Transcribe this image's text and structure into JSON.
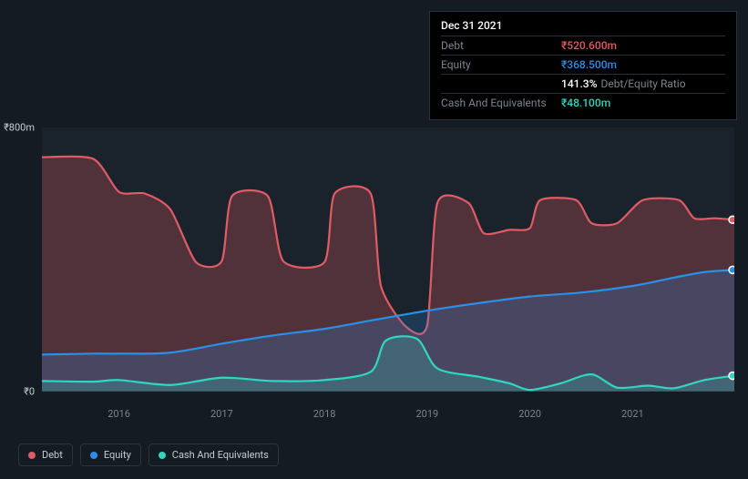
{
  "chart": {
    "type": "area",
    "background_color": "#141b22",
    "plot_background": "#1a232c",
    "grid_color": "#2a3540",
    "text_color": "#c7cdd3",
    "muted_text_color": "#7a848f",
    "ylim": [
      0,
      800
    ],
    "y_ticks": [
      {
        "v": 800,
        "label": "₹800m"
      },
      {
        "v": 0,
        "label": "₹0"
      }
    ],
    "x_years": [
      2016,
      2017,
      2018,
      2019,
      2020,
      2021
    ],
    "x_range": [
      2015.25,
      2021.99
    ],
    "series": {
      "debt": {
        "label": "Debt",
        "color": "#e15b64",
        "fill": "rgba(225,91,100,0.28)",
        "fill_to": 0,
        "data": [
          [
            2015.25,
            710
          ],
          [
            2015.75,
            705
          ],
          [
            2016.0,
            605
          ],
          [
            2016.25,
            600
          ],
          [
            2016.5,
            552
          ],
          [
            2016.75,
            392
          ],
          [
            2017.0,
            395
          ],
          [
            2017.1,
            592
          ],
          [
            2017.45,
            592
          ],
          [
            2017.6,
            395
          ],
          [
            2018.0,
            392
          ],
          [
            2018.1,
            600
          ],
          [
            2018.45,
            600
          ],
          [
            2018.55,
            320
          ],
          [
            2018.8,
            195
          ],
          [
            2019.0,
            200
          ],
          [
            2019.1,
            572
          ],
          [
            2019.4,
            572
          ],
          [
            2019.55,
            480
          ],
          [
            2019.8,
            490
          ],
          [
            2020.0,
            495
          ],
          [
            2020.1,
            580
          ],
          [
            2020.45,
            580
          ],
          [
            2020.6,
            510
          ],
          [
            2020.85,
            510
          ],
          [
            2021.1,
            580
          ],
          [
            2021.45,
            580
          ],
          [
            2021.6,
            525
          ],
          [
            2021.8,
            525
          ],
          [
            2021.99,
            520.6
          ]
        ]
      },
      "equity": {
        "label": "Equity",
        "color": "#2b8fe6",
        "fill": "rgba(43,143,230,0.22)",
        "fill_to": 0,
        "data": [
          [
            2015.25,
            112
          ],
          [
            2015.75,
            115
          ],
          [
            2016.0,
            115
          ],
          [
            2016.5,
            118
          ],
          [
            2017.0,
            145
          ],
          [
            2017.5,
            170
          ],
          [
            2018.0,
            190
          ],
          [
            2018.5,
            218
          ],
          [
            2019.0,
            245
          ],
          [
            2019.5,
            268
          ],
          [
            2020.0,
            288
          ],
          [
            2020.5,
            300
          ],
          [
            2021.0,
            320
          ],
          [
            2021.4,
            345
          ],
          [
            2021.7,
            362
          ],
          [
            2021.99,
            368.5
          ]
        ]
      },
      "cash": {
        "label": "Cash And Equivalents",
        "color": "#30d6c0",
        "fill": "rgba(48,214,192,0.22)",
        "fill_to": 0,
        "data": [
          [
            2015.25,
            32
          ],
          [
            2015.75,
            30
          ],
          [
            2016.0,
            35
          ],
          [
            2016.5,
            20
          ],
          [
            2017.0,
            42
          ],
          [
            2017.5,
            32
          ],
          [
            2018.0,
            35
          ],
          [
            2018.45,
            60
          ],
          [
            2018.6,
            155
          ],
          [
            2018.9,
            160
          ],
          [
            2019.1,
            70
          ],
          [
            2019.5,
            45
          ],
          [
            2019.8,
            25
          ],
          [
            2020.0,
            5
          ],
          [
            2020.3,
            25
          ],
          [
            2020.6,
            52
          ],
          [
            2020.85,
            12
          ],
          [
            2021.15,
            18
          ],
          [
            2021.4,
            10
          ],
          [
            2021.7,
            35
          ],
          [
            2021.99,
            48.1
          ]
        ]
      }
    },
    "end_markers": [
      {
        "series": "debt",
        "y": 520.6
      },
      {
        "series": "equity",
        "y": 368.5
      },
      {
        "series": "cash",
        "y": 48.1
      }
    ]
  },
  "tooltip": {
    "date": "Dec 31 2021",
    "rows": [
      {
        "label": "Debt",
        "value": "₹520.600m",
        "color": "#e15b64"
      },
      {
        "label": "Equity",
        "value": "₹368.500m",
        "color": "#2b8fe6"
      },
      {
        "label": "",
        "value": "141.3%",
        "extra": "Debt/Equity Ratio",
        "color": "#ffffff"
      },
      {
        "label": "Cash And Equivalents",
        "value": "₹48.100m",
        "color": "#30d6c0"
      }
    ]
  },
  "legend": [
    {
      "label": "Debt",
      "color": "#e15b64",
      "key": "debt"
    },
    {
      "label": "Equity",
      "color": "#2b8fe6",
      "key": "equity"
    },
    {
      "label": "Cash And Equivalents",
      "color": "#30d6c0",
      "key": "cash"
    }
  ]
}
